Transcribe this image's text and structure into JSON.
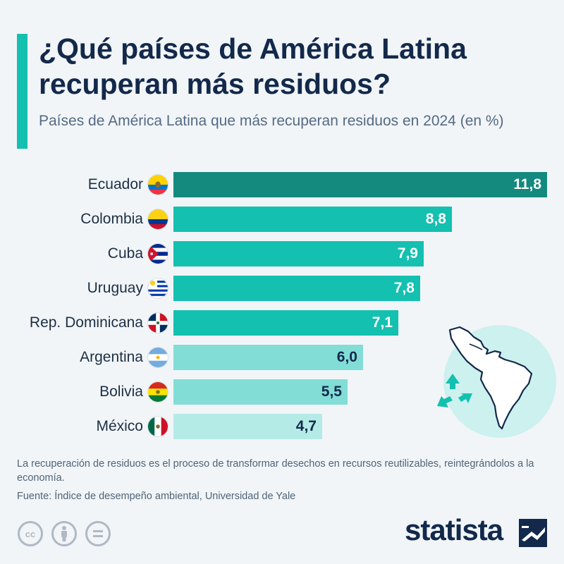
{
  "title": "¿Qué países de América Latina recuperan más residuos?",
  "subtitle": "Países de América Latina que más recuperan residuos en 2024 (en %)",
  "chart_data": {
    "type": "bar",
    "orientation": "horizontal",
    "categories": [
      "Ecuador",
      "Colombia",
      "Cuba",
      "Uruguay",
      "Rep. Dominicana",
      "Argentina",
      "Bolivia",
      "México"
    ],
    "values": [
      11.8,
      8.8,
      7.9,
      7.8,
      7.1,
      6.0,
      5.5,
      4.7
    ],
    "value_labels": [
      "11,8",
      "8,8",
      "7,9",
      "7,8",
      "7,1",
      "6,0",
      "5,5",
      "4,7"
    ],
    "bar_colors": [
      "#14897e",
      "#14c0b0",
      "#14c0b0",
      "#14c0b0",
      "#14c0b0",
      "#82ddd6",
      "#82ddd6",
      "#b4ebe6"
    ],
    "value_text_colors": [
      "#ffffff",
      "#ffffff",
      "#ffffff",
      "#ffffff",
      "#ffffff",
      "#13294b",
      "#13294b",
      "#13294b"
    ],
    "flag_icons": [
      "flag-ecuador-icon",
      "flag-colombia-icon",
      "flag-cuba-icon",
      "flag-uruguay-icon",
      "flag-dominican-republic-icon",
      "flag-argentina-icon",
      "flag-bolivia-icon",
      "flag-mexico-icon"
    ],
    "xlim": [
      0,
      11.8
    ],
    "xlabel": "",
    "ylabel": "",
    "grid": false,
    "legend": "none"
  },
  "footnote": "La recuperación de residuos es el proceso de transformar desechos en recursos reutilizables, reintegrándolos a la economía.",
  "source": "Fuente: Índice de desempeño ambiental, Universidad de Yale",
  "brand": "statista",
  "license_icons": [
    "cc-icon",
    "attribution-icon",
    "no-derivatives-icon"
  ],
  "illustration_icons": [
    "latin-america-map-icon",
    "recycle-icon"
  ],
  "colors": {
    "accent": "#14c0b0",
    "title": "#13294b",
    "background": "#f1f5f8"
  }
}
